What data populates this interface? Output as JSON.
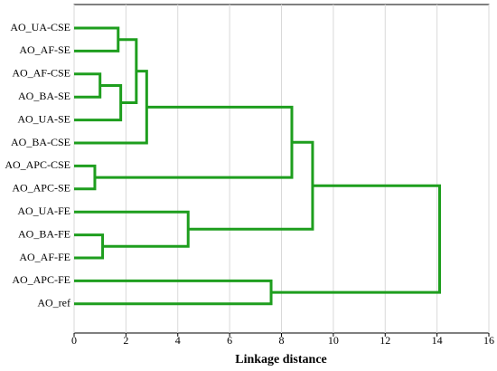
{
  "chart_data": {
    "type": "dendrogram",
    "xlabel": "Linkage distance",
    "xlim": [
      0,
      16
    ],
    "xticks": [
      0,
      2,
      4,
      6,
      8,
      10,
      12,
      14,
      16
    ],
    "grid": true,
    "color": "#1e9e1e",
    "tree": {
      "height": 14.1,
      "children": [
        {
          "height": 9.2,
          "children": [
            {
              "height": 8.4,
              "children": [
                {
                  "height": 2.8,
                  "children": [
                    {
                      "height": 2.4,
                      "children": [
                        {
                          "height": 1.7,
                          "children": [
                            "AO_UA-CSE",
                            "AO_AF-SE"
                          ]
                        },
                        {
                          "height": 1.8,
                          "children": [
                            {
                              "height": 1.0,
                              "children": [
                                "AO_AF-CSE",
                                "AO_BA-SE"
                              ]
                            },
                            "AO_UA-SE"
                          ]
                        }
                      ]
                    },
                    "AO_BA-CSE"
                  ]
                },
                {
                  "height": 0.8,
                  "children": [
                    "AO_APC-CSE",
                    "AO_APC-SE"
                  ]
                }
              ]
            },
            {
              "height": 4.4,
              "children": [
                "AO_UA-FE",
                {
                  "height": 1.1,
                  "children": [
                    "AO_BA-FE",
                    "AO_AF-FE"
                  ]
                }
              ]
            }
          ]
        },
        {
          "height": 7.6,
          "children": [
            "AO_APC-FE",
            "AO_ref"
          ]
        }
      ]
    }
  }
}
